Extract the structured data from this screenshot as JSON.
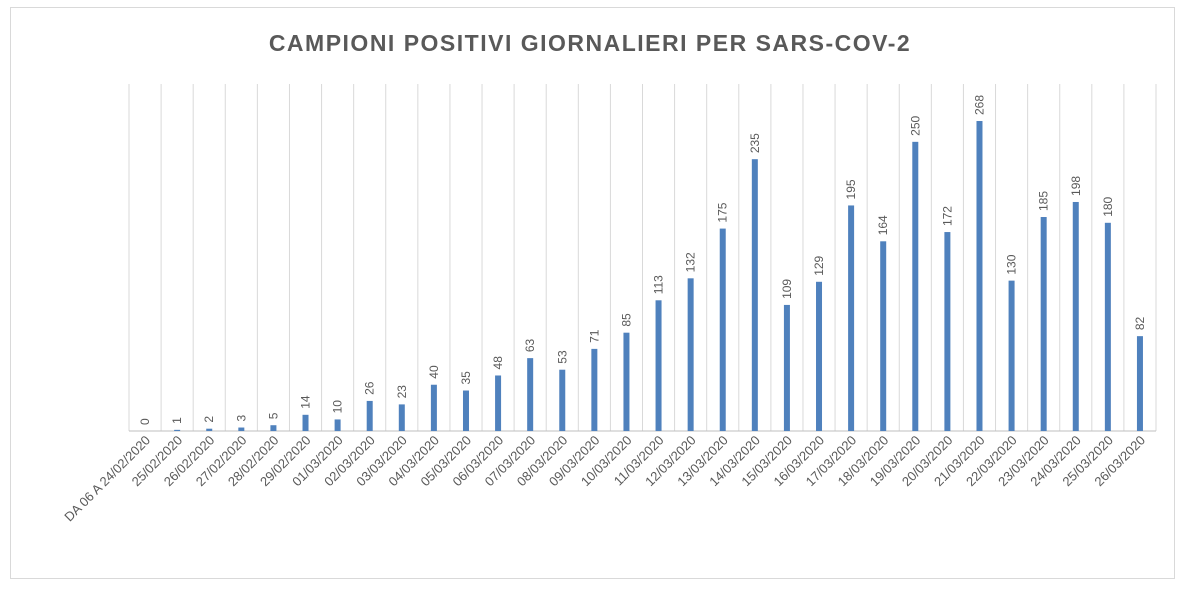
{
  "chart_data": {
    "type": "bar",
    "title": "CAMPIONI POSITIVI GIORNALIERI PER SARS-COV-2",
    "xlabel": "",
    "ylabel": "",
    "categories": [
      "DA 06 A 24/02/2020",
      "25/02/2020",
      "26/02/2020",
      "27/02/2020",
      "28/02/2020",
      "29/02/2020",
      "01/03/2020",
      "02/03/2020",
      "03/03/2020",
      "04/03/2020",
      "05/03/2020",
      "06/03/2020",
      "07/03/2020",
      "08/03/2020",
      "09/03/2020",
      "10/03/2020",
      "11/03/2020",
      "12/03/2020",
      "13/03/2020",
      "14/03/2020",
      "15/03/2020",
      "16/03/2020",
      "17/03/2020",
      "18/03/2020",
      "19/03/2020",
      "20/03/2020",
      "21/03/2020",
      "22/03/2020",
      "23/03/2020",
      "24/03/2020",
      "25/03/2020",
      "26/03/2020"
    ],
    "values": [
      0,
      1,
      2,
      3,
      5,
      14,
      10,
      26,
      23,
      40,
      35,
      48,
      63,
      53,
      71,
      85,
      113,
      132,
      175,
      235,
      109,
      129,
      195,
      164,
      250,
      172,
      268,
      130,
      185,
      198,
      180,
      82
    ],
    "ylim": [
      0,
      300
    ],
    "grid": "vertical",
    "legend": "none",
    "bar_color": "#4f81bd",
    "data_labels": true
  }
}
